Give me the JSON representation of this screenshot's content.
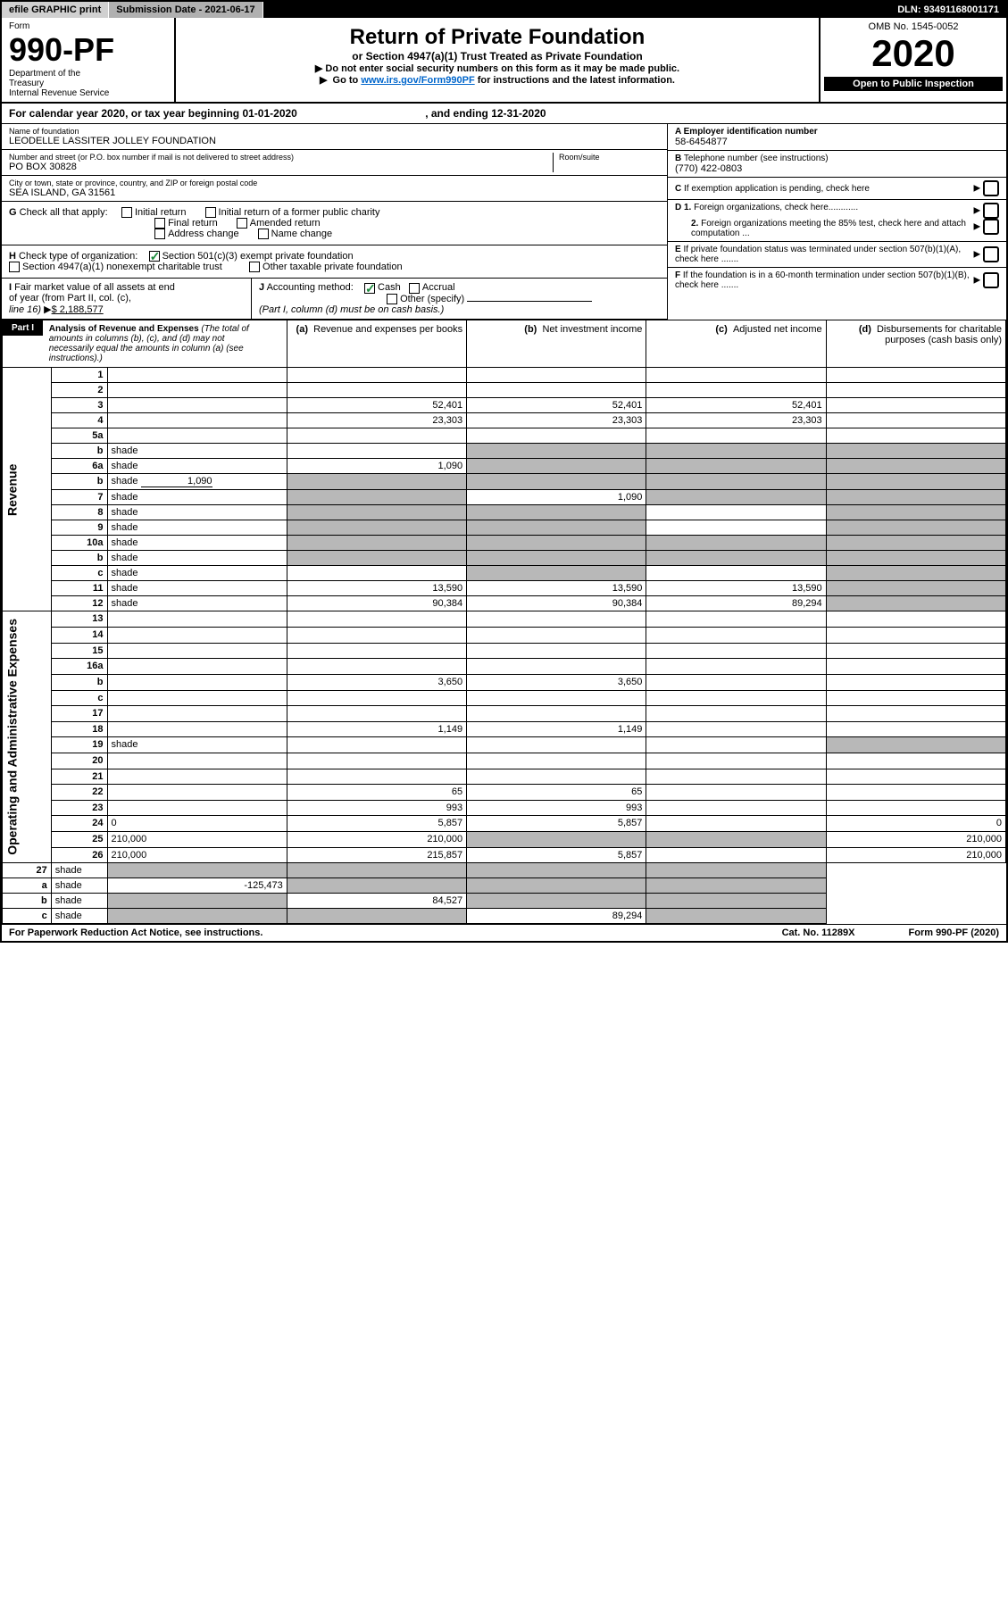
{
  "topbar": {
    "efile": "efile GRAPHIC print",
    "subdate_label": "Submission Date - ",
    "subdate": "2021-06-17",
    "dln_label": "DLN: ",
    "dln": "93491168001171"
  },
  "header": {
    "form_word": "Form",
    "form_num": "990-PF",
    "dept1": "Department of the",
    "dept2": "Treasury",
    "dept3": "Internal Revenue Service",
    "title": "Return of Private Foundation",
    "sub": "or Section 4947(a)(1) Trust Treated as Private Foundation",
    "instr1": "Do not enter social security numbers on this form as it may be made public.",
    "instr2_pre": "Go to ",
    "instr2_link": "www.irs.gov/Form990PF",
    "instr2_post": " for instructions and the latest information.",
    "omb": "OMB No. 1545-0052",
    "year": "2020",
    "badge": "Open to Public Inspection"
  },
  "cal": {
    "pre": "For calendar year 2020, or tax year beginning ",
    "begin": "01-01-2020",
    "mid": ", and ending ",
    "end": "12-31-2020"
  },
  "info": {
    "name_label": "Name of foundation",
    "name": "LEODELLE LASSITER JOLLEY FOUNDATION",
    "addr_label": "Number and street (or P.O. box number if mail is not delivered to street address)",
    "addr": "PO BOX 30828",
    "room_label": "Room/suite",
    "city_label": "City or town, state or province, country, and ZIP or foreign postal code",
    "city": "SEA ISLAND, GA  31561",
    "a_label": "A Employer identification number",
    "a_val": "58-6454877",
    "b_label": "B",
    "b_text": "Telephone number (see instructions)",
    "b_val": "(770) 422-0803",
    "c_label": "C",
    "c_text": "If exemption application is pending, check here",
    "d1": "D 1.",
    "d1_text": "Foreign organizations, check here............",
    "d2": "2.",
    "d2_text": "Foreign organizations meeting the 85% test, check here and attach computation ...",
    "e_label": "E",
    "e_text": "If private foundation status was terminated under section 507(b)(1)(A), check here .......",
    "f_label": "F",
    "f_text": "If the foundation is in a 60-month termination under section 507(b)(1)(B), check here ......."
  },
  "g": {
    "label": "G",
    "text": "Check all that apply:",
    "o1": "Initial return",
    "o2": "Initial return of a former public charity",
    "o3": "Final return",
    "o4": "Amended return",
    "o5": "Address change",
    "o6": "Name change"
  },
  "h": {
    "label": "H",
    "text": "Check type of organization:",
    "o1": "Section 501(c)(3) exempt private foundation",
    "o2": "Section 4947(a)(1) nonexempt charitable trust",
    "o3": "Other taxable private foundation"
  },
  "i": {
    "label": "I",
    "text1": "Fair market value of all assets at end",
    "text2": "of year (from Part II, col. (c),",
    "text3": "line 16)",
    "amount": "$  2,188,577"
  },
  "j": {
    "label": "J",
    "text": "Accounting method:",
    "o1": "Cash",
    "o2": "Accrual",
    "o3": "Other (specify)",
    "note": "(Part I, column (d) must be on cash basis.)"
  },
  "part1": {
    "label": "Part I",
    "title": "Analysis of Revenue and Expenses",
    "sub": "(The total of amounts in columns (b), (c), and (d) may not necessarily equal the amounts in column (a) (see instructions).)",
    "col_a": "Revenue and expenses per books",
    "col_a_pre": "(a)",
    "col_b": "Net investment income",
    "col_b_pre": "(b)",
    "col_c": "Adjusted net income",
    "col_c_pre": "(c)",
    "col_d": "Disbursements for charitable purposes (cash basis only)",
    "col_d_pre": "(d)",
    "revenue_label": "Revenue",
    "expenses_label": "Operating and Administrative Expenses"
  },
  "rows": [
    {
      "n": "1",
      "d": "",
      "a": "",
      "b": "",
      "c": ""
    },
    {
      "n": "2",
      "d": "",
      "a": "",
      "b": "",
      "c": ""
    },
    {
      "n": "3",
      "d": "",
      "a": "52,401",
      "b": "52,401",
      "c": "52,401"
    },
    {
      "n": "4",
      "d": "",
      "a": "23,303",
      "b": "23,303",
      "c": "23,303"
    },
    {
      "n": "5a",
      "d": "",
      "a": "",
      "b": "",
      "c": ""
    },
    {
      "n": "b",
      "d": "shade",
      "a": "",
      "b": "shade",
      "c": "shade"
    },
    {
      "n": "6a",
      "d": "shade",
      "a": "1,090",
      "b": "shade",
      "c": "shade"
    },
    {
      "n": "b",
      "d": "shade",
      "inline": "1,090",
      "a": "shade",
      "b": "shade",
      "c": "shade"
    },
    {
      "n": "7",
      "d": "shade",
      "a": "shade",
      "b": "1,090",
      "c": "shade"
    },
    {
      "n": "8",
      "d": "shade",
      "a": "shade",
      "b": "shade",
      "c": ""
    },
    {
      "n": "9",
      "d": "shade",
      "a": "shade",
      "b": "shade",
      "c": ""
    },
    {
      "n": "10a",
      "d": "shade",
      "a": "shade",
      "b": "shade",
      "c": "shade"
    },
    {
      "n": "b",
      "d": "shade",
      "a": "shade",
      "b": "shade",
      "c": "shade"
    },
    {
      "n": "c",
      "d": "shade",
      "a": "",
      "b": "shade",
      "c": ""
    },
    {
      "n": "11",
      "d": "shade",
      "a": "13,590",
      "b": "13,590",
      "c": "13,590"
    },
    {
      "n": "12",
      "d": "shade",
      "a": "90,384",
      "b": "90,384",
      "c": "89,294"
    }
  ],
  "exp_rows": [
    {
      "n": "13",
      "d": "",
      "a": "",
      "b": "",
      "c": ""
    },
    {
      "n": "14",
      "d": "",
      "a": "",
      "b": "",
      "c": ""
    },
    {
      "n": "15",
      "d": "",
      "a": "",
      "b": "",
      "c": ""
    },
    {
      "n": "16a",
      "d": "",
      "a": "",
      "b": "",
      "c": ""
    },
    {
      "n": "b",
      "d": "",
      "a": "3,650",
      "b": "3,650",
      "c": ""
    },
    {
      "n": "c",
      "d": "",
      "a": "",
      "b": "",
      "c": ""
    },
    {
      "n": "17",
      "d": "",
      "a": "",
      "b": "",
      "c": ""
    },
    {
      "n": "18",
      "d": "",
      "a": "1,149",
      "b": "1,149",
      "c": ""
    },
    {
      "n": "19",
      "d": "shade",
      "a": "",
      "b": "",
      "c": ""
    },
    {
      "n": "20",
      "d": "",
      "a": "",
      "b": "",
      "c": ""
    },
    {
      "n": "21",
      "d": "",
      "a": "",
      "b": "",
      "c": ""
    },
    {
      "n": "22",
      "d": "",
      "a": "65",
      "b": "65",
      "c": ""
    },
    {
      "n": "23",
      "d": "",
      "a": "993",
      "b": "993",
      "c": ""
    },
    {
      "n": "24",
      "d": "0",
      "a": "5,857",
      "b": "5,857",
      "c": ""
    },
    {
      "n": "25",
      "d": "210,000",
      "a": "210,000",
      "b": "shade",
      "c": "shade"
    },
    {
      "n": "26",
      "d": "210,000",
      "a": "215,857",
      "b": "5,857",
      "c": ""
    }
  ],
  "final_rows": [
    {
      "n": "27",
      "d": "shade",
      "a": "shade",
      "b": "shade",
      "c": "shade"
    },
    {
      "n": "a",
      "d": "shade",
      "a": "-125,473",
      "b": "shade",
      "c": "shade"
    },
    {
      "n": "b",
      "d": "shade",
      "a": "shade",
      "b": "84,527",
      "c": "shade"
    },
    {
      "n": "c",
      "d": "shade",
      "a": "shade",
      "b": "shade",
      "c": "89,294"
    }
  ],
  "footer": {
    "left": "For Paperwork Reduction Act Notice, see instructions.",
    "mid": "Cat. No. 11289X",
    "right_pre": "Form ",
    "right_bold": "990-PF",
    "right_post": " (2020)"
  }
}
